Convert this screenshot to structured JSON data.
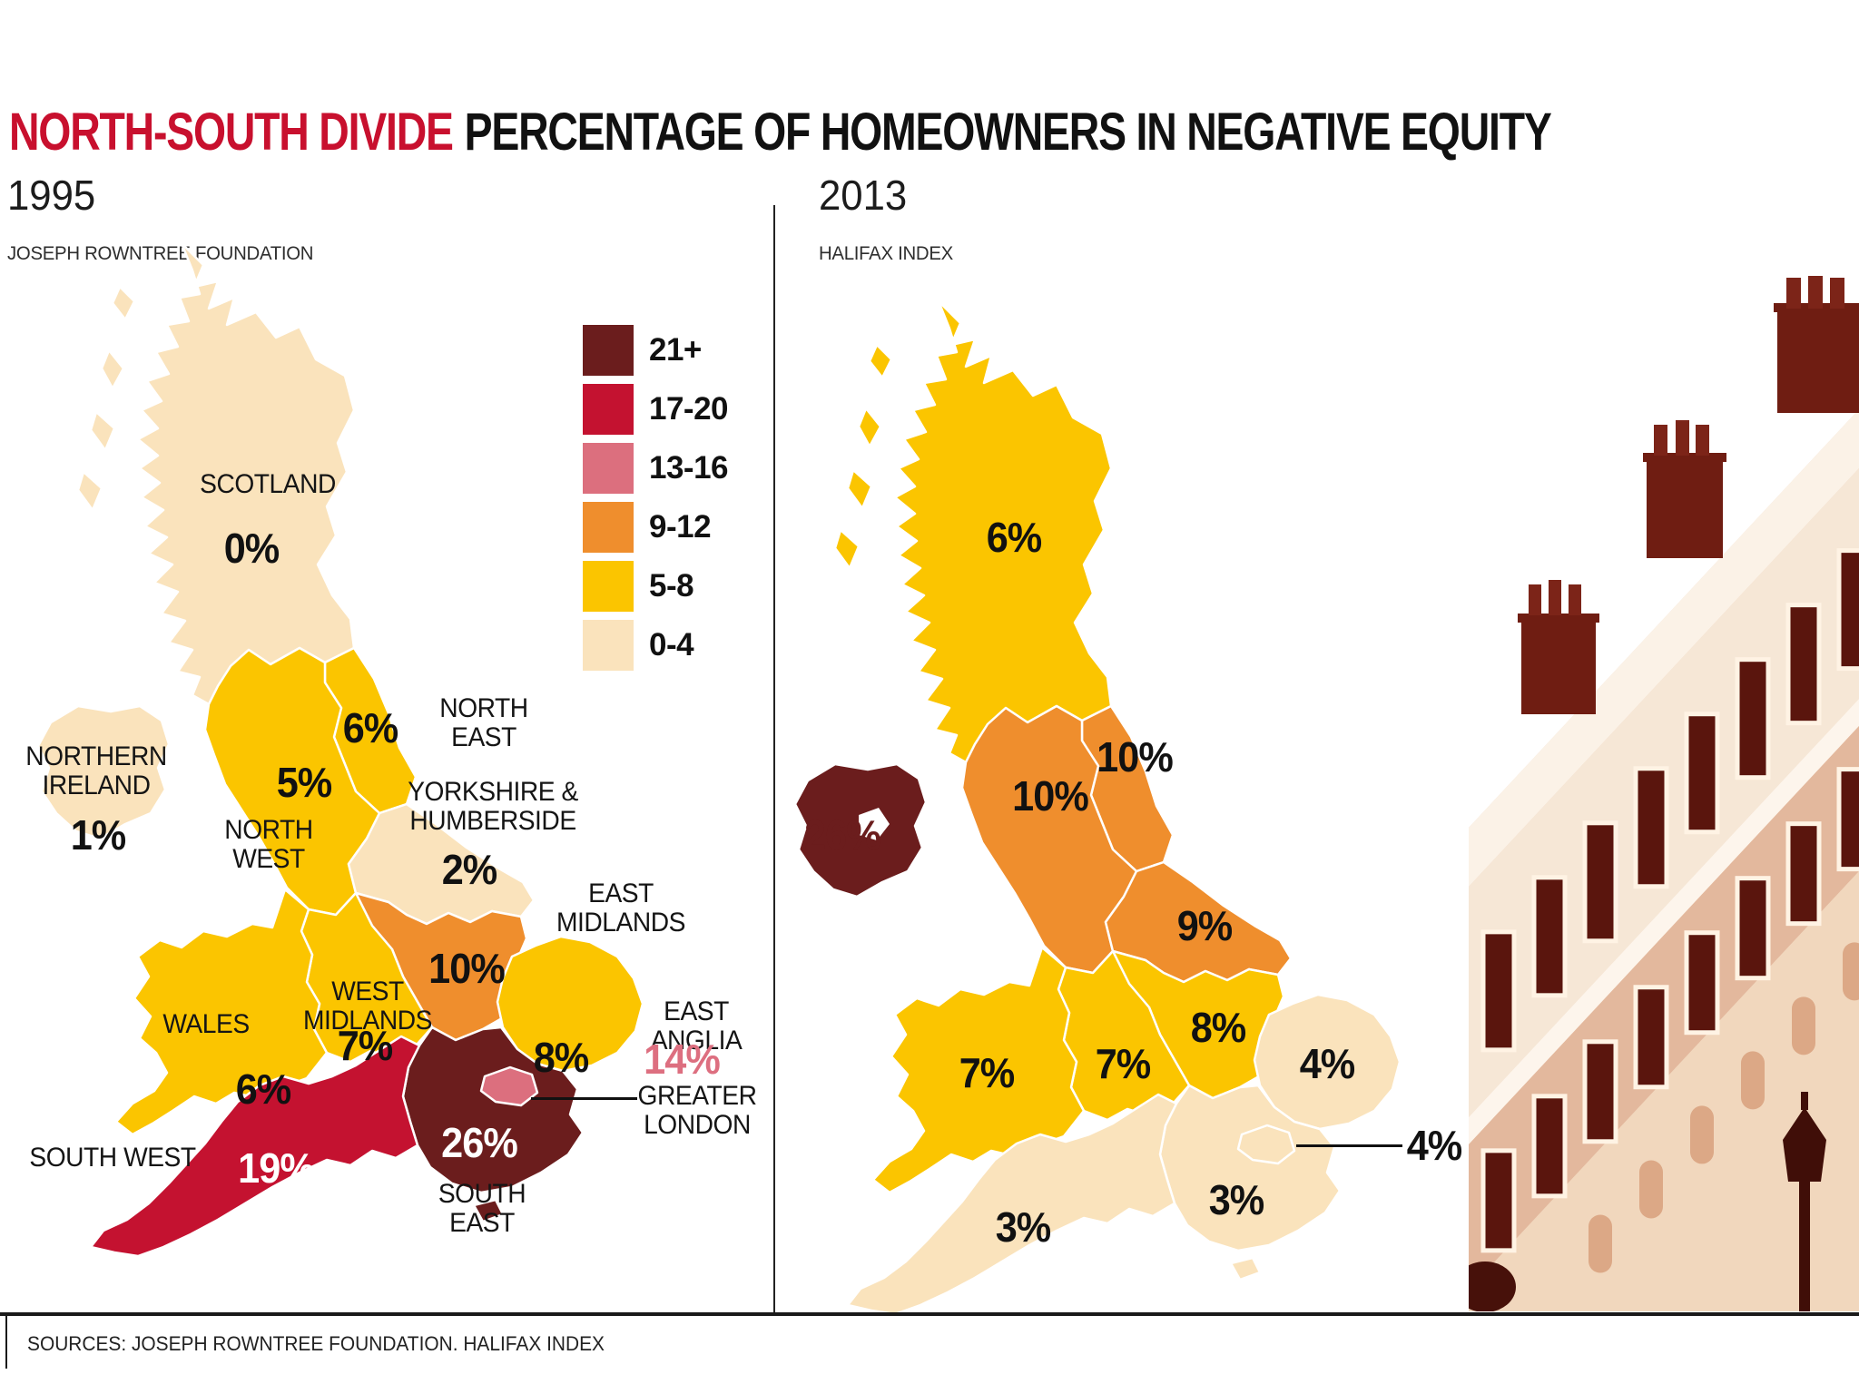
{
  "title": {
    "highlight": "NORTH-SOUTH DIVIDE",
    "rest": "PERCENTAGE OF HOMEOWNERS IN NEGATIVE EQUITY"
  },
  "legend": {
    "bands": [
      {
        "range": "21+",
        "color": "#6B1D1D"
      },
      {
        "range": "17-20",
        "color": "#C41230"
      },
      {
        "range": "13-16",
        "color": "#DC6F7E"
      },
      {
        "range": "9-12",
        "color": "#EF8E2D"
      },
      {
        "range": "5-8",
        "color": "#FBC500"
      },
      {
        "range": "0-4",
        "color": "#FAE3BC"
      }
    ]
  },
  "maps": [
    {
      "year": "1995",
      "source": "JOSEPH ROWNTREE FOUNDATION",
      "regions": [
        {
          "id": "scotland",
          "name": "SCOTLAND",
          "value": 0,
          "value_label": "0%"
        },
        {
          "id": "northern-ireland",
          "name": "NORTHERN\nIRELAND",
          "value": 1,
          "value_label": "1%"
        },
        {
          "id": "north-east",
          "name": "NORTH\nEAST",
          "value": 6,
          "value_label": "6%"
        },
        {
          "id": "north-west",
          "name": "NORTH\nWEST",
          "value": 5,
          "value_label": "5%"
        },
        {
          "id": "yorkshire-humberside",
          "name": "YORKSHIRE &\nHUMBERSIDE",
          "value": 2,
          "value_label": "2%"
        },
        {
          "id": "east-midlands",
          "name": "EAST\nMIDLANDS",
          "value": 10,
          "value_label": "10%"
        },
        {
          "id": "west-midlands",
          "name": "WEST\nMIDLANDS",
          "value": 7,
          "value_label": "7%"
        },
        {
          "id": "wales",
          "name": "WALES",
          "value": 6,
          "value_label": "6%"
        },
        {
          "id": "east-anglia",
          "name": "EAST\nANGLIA",
          "value": 8,
          "value_label": "8%"
        },
        {
          "id": "greater-london",
          "name": "GREATER\nLONDON",
          "value": 14,
          "value_label": "14%"
        },
        {
          "id": "south-east",
          "name": "SOUTH\nEAST",
          "value": 26,
          "value_label": "26%"
        },
        {
          "id": "south-west",
          "name": "SOUTH WEST",
          "value": 19,
          "value_label": "19%"
        }
      ]
    },
    {
      "year": "2013",
      "source": "HALIFAX INDEX",
      "regions": [
        {
          "id": "scotland",
          "value": 6,
          "value_label": "6%"
        },
        {
          "id": "northern-ireland",
          "value": 26,
          "value_label": "26%"
        },
        {
          "id": "north-east",
          "value": 10,
          "value_label": "10%"
        },
        {
          "id": "north-west",
          "value": 10,
          "value_label": "10%"
        },
        {
          "id": "yorkshire-humberside",
          "value": 9,
          "value_label": "9%"
        },
        {
          "id": "east-midlands",
          "value": 8,
          "value_label": "8%"
        },
        {
          "id": "west-midlands",
          "value": 7,
          "value_label": "7%"
        },
        {
          "id": "wales",
          "value": 7,
          "value_label": "7%"
        },
        {
          "id": "east-anglia",
          "value": 4,
          "value_label": "4%"
        },
        {
          "id": "greater-london",
          "value": 4,
          "value_label": "4%"
        },
        {
          "id": "south-east",
          "value": 3,
          "value_label": "3%"
        },
        {
          "id": "south-west",
          "value": 3,
          "value_label": "3%"
        }
      ]
    }
  ],
  "footer": {
    "sources": "SOURCES: JOSEPH ROWNTREE FOUNDATION. HALIFAX INDEX"
  },
  "chart_data": {
    "type": "heatmap",
    "subtype": "choropleth-map-pair",
    "title": "NORTH-SOUTH DIVIDE PERCENTAGE OF HOMEOWNERS IN NEGATIVE EQUITY",
    "unit": "%",
    "categories": [
      "Scotland",
      "Northern Ireland",
      "North East",
      "North West",
      "Yorkshire & Humberside",
      "East Midlands",
      "West Midlands",
      "Wales",
      "East Anglia",
      "Greater London",
      "South East",
      "South West"
    ],
    "series": [
      {
        "name": "1995 (Joseph Rowntree Foundation)",
        "values": [
          0,
          1,
          6,
          5,
          2,
          10,
          7,
          6,
          8,
          14,
          26,
          19
        ]
      },
      {
        "name": "2013 (Halifax Index)",
        "values": [
          6,
          26,
          10,
          10,
          9,
          8,
          7,
          7,
          4,
          4,
          3,
          3
        ]
      }
    ],
    "legend_bands": [
      "21+",
      "17-20",
      "13-16",
      "9-12",
      "5-8",
      "0-4"
    ],
    "legend_position": "top-right of 1995 map"
  }
}
